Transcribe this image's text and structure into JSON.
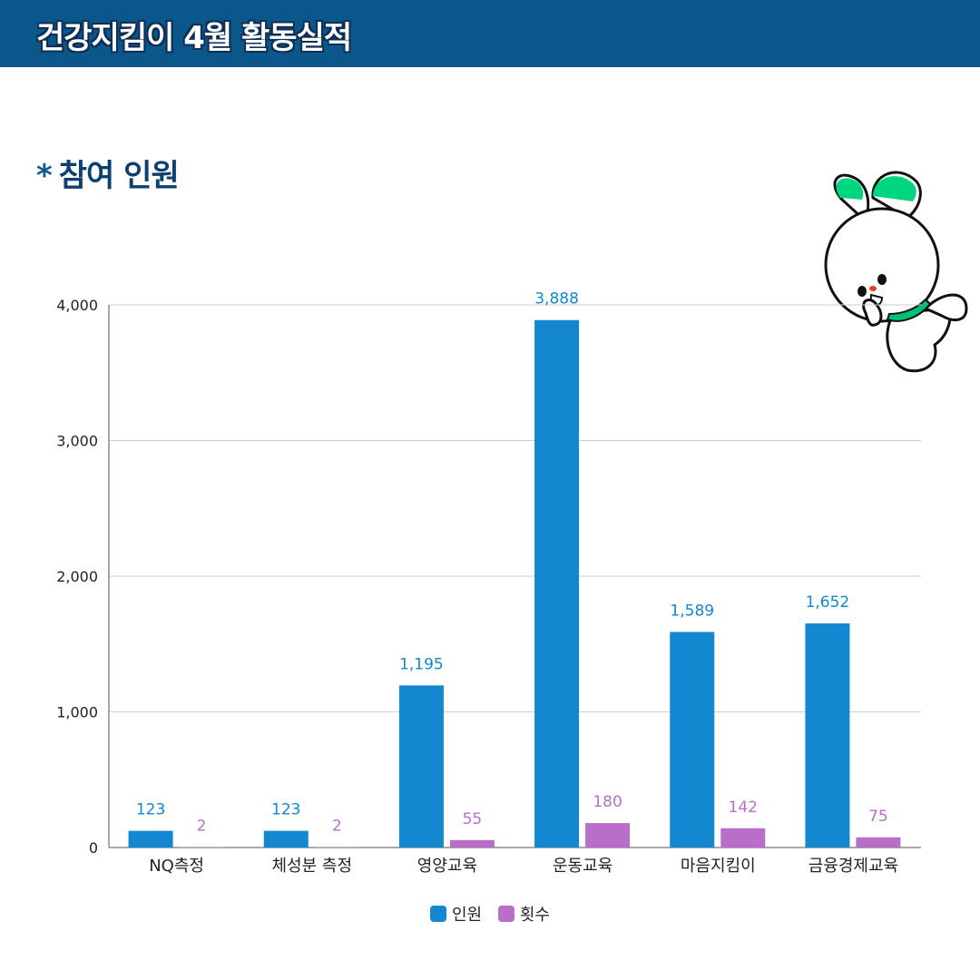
{
  "header": {
    "title": "건강지킴이 4월 활동실적"
  },
  "section": {
    "asterisk": "*",
    "title": "참여 인원"
  },
  "colors": {
    "header_bg": "#0b568b",
    "series1": "#1387d0",
    "series2": "#b96fca"
  },
  "chart_data": {
    "type": "bar",
    "categories": [
      "NQ측정",
      "체성분 측정",
      "영양교육",
      "운동교육",
      "마음지킴이",
      "금융경제교육"
    ],
    "series": [
      {
        "name": "인원",
        "color": "#1387d0",
        "values": [
          123,
          123,
          1195,
          3888,
          1589,
          1652
        ],
        "labels": [
          "123",
          "123",
          "1,195",
          "3,888",
          "1,589",
          "1,652"
        ]
      },
      {
        "name": "횟수",
        "color": "#b96fca",
        "values": [
          2,
          2,
          55,
          180,
          142,
          75
        ],
        "labels": [
          "2",
          "2",
          "55",
          "180",
          "142",
          "75"
        ]
      }
    ],
    "ylim": [
      0,
      4000
    ],
    "yticks": [
      0,
      1000,
      2000,
      3000,
      4000
    ],
    "ytick_labels": [
      "0",
      "1,000",
      "2,000",
      "3,000",
      "4,000"
    ],
    "grid": true,
    "legend_position": "bottom-center"
  }
}
